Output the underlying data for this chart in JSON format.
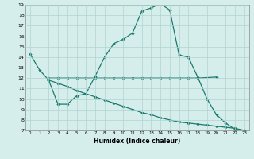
{
  "title": "",
  "xlabel": "Humidex (Indice chaleur)",
  "xlim": [
    -0.5,
    23.5
  ],
  "ylim": [
    7,
    19
  ],
  "yticks": [
    7,
    8,
    9,
    10,
    11,
    12,
    13,
    14,
    15,
    16,
    17,
    18,
    19
  ],
  "xticks": [
    0,
    1,
    2,
    3,
    4,
    5,
    6,
    7,
    8,
    9,
    10,
    11,
    12,
    13,
    14,
    15,
    16,
    17,
    18,
    19,
    20,
    21,
    22,
    23
  ],
  "xtick_labels": [
    "0",
    "1",
    "2",
    "3",
    "4",
    "5",
    "6",
    "7",
    "8",
    "9",
    "10",
    "11",
    "12",
    "13",
    "14",
    "15",
    "16",
    "17",
    "18",
    "19",
    "20",
    "21",
    "22",
    "23"
  ],
  "bg_color": "#d6eeeb",
  "line_color": "#1a7a6e",
  "grid_color": "#aed4cf",
  "line1_x": [
    0,
    1,
    2,
    3,
    4,
    5,
    6,
    7,
    8,
    9,
    10,
    11,
    12,
    13,
    14,
    15,
    16,
    17,
    18,
    19,
    20,
    21,
    22,
    23
  ],
  "line1_y": [
    14.3,
    12.8,
    11.8,
    9.5,
    9.5,
    10.3,
    10.5,
    12.2,
    14.0,
    15.3,
    15.7,
    16.3,
    18.4,
    18.7,
    19.1,
    18.5,
    14.2,
    14.0,
    12.1,
    10.0,
    8.5,
    7.7,
    7.1,
    7.0
  ],
  "line2_x": [
    2,
    3,
    4,
    5,
    6,
    7,
    8,
    9,
    10,
    11,
    12,
    13,
    14,
    15,
    16,
    17,
    18,
    20
  ],
  "line2_y": [
    12.0,
    12.0,
    12.0,
    12.0,
    12.0,
    12.0,
    12.0,
    12.0,
    12.0,
    12.0,
    12.0,
    12.0,
    12.0,
    12.0,
    12.0,
    12.0,
    12.0,
    12.1
  ],
  "line3_x": [
    2,
    3,
    4,
    5,
    6,
    7,
    8,
    9,
    10,
    11,
    12,
    13,
    14,
    15,
    16,
    17,
    18,
    19,
    20,
    21,
    22,
    23
  ],
  "line3_y": [
    11.8,
    11.5,
    11.2,
    10.8,
    10.5,
    10.2,
    9.9,
    9.6,
    9.3,
    9.0,
    8.7,
    8.5,
    8.2,
    8.0,
    7.8,
    7.7,
    7.6,
    7.5,
    7.4,
    7.3,
    7.2,
    7.0
  ]
}
